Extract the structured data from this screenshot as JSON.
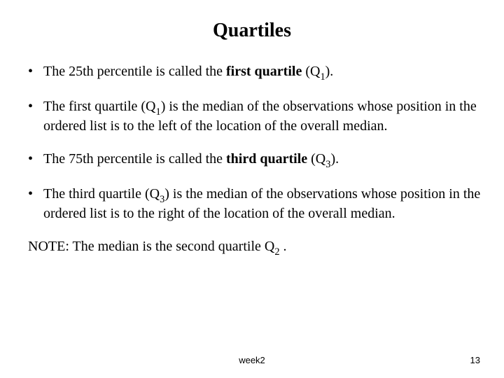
{
  "title": "Quartiles",
  "bullets": {
    "b1": {
      "pre": "The 25th percentile is called the ",
      "bold": "first quartile",
      "post": " (Q",
      "sub": "1",
      "tail": ")."
    },
    "b2": {
      "pre": "The first quartile (Q",
      "sub": "1",
      "post": ") is the median of the observations whose position in the ordered list is to the left of the location of the overall median."
    },
    "b3": {
      "pre": "The 75th percentile is called the ",
      "bold": "third quartile",
      "post": " (Q",
      "sub": "3",
      "tail": ")."
    },
    "b4": {
      "pre": "The third quartile (Q",
      "sub": "3",
      "post": ") is the median of the observations whose position in the ordered list is to the right of the location of the overall median."
    }
  },
  "note": {
    "pre": "NOTE: The median is the second quartile Q",
    "sub": "2",
    "post": " ."
  },
  "footer": {
    "center": "week2",
    "page": "13"
  },
  "style": {
    "background": "#ffffff",
    "text_color": "#000000",
    "title_fontsize": 28,
    "body_fontsize": 20,
    "footer_fontsize": 13,
    "font_family_body": "Times New Roman",
    "font_family_footer": "Arial"
  }
}
